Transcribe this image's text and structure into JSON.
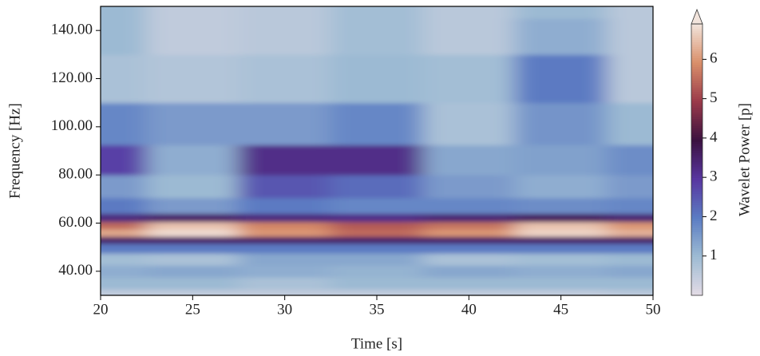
{
  "chart_data": {
    "type": "heatmap",
    "x_label": "Time [s]",
    "y_label": "Frequency [Hz]",
    "colorbar_label": "Wavelet Power [p]",
    "x": [
      20,
      25,
      30,
      35,
      40,
      45,
      50
    ],
    "y": [
      30,
      35,
      40,
      45,
      50,
      53,
      56,
      59,
      62,
      66,
      75,
      85,
      100,
      120,
      140,
      150
    ],
    "z": [
      [
        0.5,
        0.5,
        0.5,
        0.5,
        0.5,
        0.5,
        0.6
      ],
      [
        1,
        1,
        0.8,
        1,
        1,
        1,
        1
      ],
      [
        1.2,
        1.3,
        1.2,
        1.1,
        1.3,
        1.2,
        1.3
      ],
      [
        0.9,
        0.8,
        1.3,
        1.3,
        0.8,
        0.9,
        1
      ],
      [
        2,
        2,
        2,
        2,
        2,
        2,
        2
      ],
      [
        3.5,
        3.5,
        3.5,
        3.5,
        3.5,
        3.5,
        3.5
      ],
      [
        6.2,
        6.8,
        6,
        5.5,
        6,
        6.7,
        6.3
      ],
      [
        5.5,
        6.5,
        5.8,
        5.3,
        5.6,
        6.5,
        6
      ],
      [
        3.3,
        3.5,
        3.3,
        3.2,
        3.4,
        3.6,
        3.4
      ],
      [
        2,
        1.5,
        2,
        1.8,
        1.8,
        1.7,
        1.8
      ],
      [
        1.5,
        1,
        2.5,
        2.2,
        1.5,
        1.2,
        1.5
      ],
      [
        2.8,
        1.2,
        3.2,
        3.2,
        1.3,
        1.4,
        1.7
      ],
      [
        1.8,
        1.5,
        1.5,
        1.8,
        0.8,
        1.6,
        1
      ],
      [
        0.8,
        0.7,
        0.8,
        1,
        0.9,
        2,
        0.6
      ],
      [
        1,
        0.5,
        0.6,
        0.9,
        0.6,
        1.2,
        0.6
      ],
      [
        1,
        0.5,
        0.6,
        0.9,
        0.6,
        1,
        0.6
      ]
    ],
    "xlim": [
      20,
      50
    ],
    "xticks": [
      20,
      25,
      30,
      35,
      40,
      45,
      50
    ],
    "ylim": [
      30,
      150
    ],
    "yticks": [
      {
        "value": 40,
        "label": "40.00"
      },
      {
        "value": 60,
        "label": "60.00"
      },
      {
        "value": 80,
        "label": "80.00"
      },
      {
        "value": 100,
        "label": "100.00"
      },
      {
        "value": 120,
        "label": "120.00"
      },
      {
        "value": 140,
        "label": "140.00"
      }
    ],
    "clim": [
      0,
      6.9
    ],
    "cticks": [
      1,
      2,
      3,
      4,
      5,
      6
    ],
    "colormap": [
      "#e4dce6",
      "#9dbbd3",
      "#5b7cc3",
      "#5836a0",
      "#3b1140",
      "#9a3a4a",
      "#d98f6a",
      "#f2e4dc"
    ]
  }
}
